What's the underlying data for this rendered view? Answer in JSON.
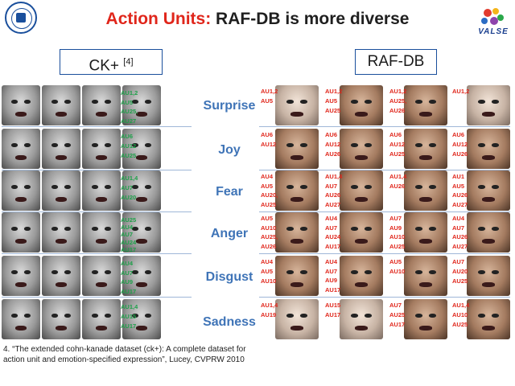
{
  "title": {
    "accent": "Action Units:",
    "rest": " RAF-DB is more diverse"
  },
  "logos": {
    "right_text": "VALSE"
  },
  "datasets": {
    "ck": "CK+",
    "ck_ref": "[4]",
    "raf": "RAF-DB"
  },
  "emotions": [
    "Surprise",
    "Joy",
    "Fear",
    "Anger",
    "Disgust",
    "Sadness"
  ],
  "ck_aus": [
    [
      "AU1,2",
      "AU5",
      "AU25,",
      "AU27"
    ],
    [
      "AU6",
      "AU12",
      "AU25"
    ],
    [
      "AU1,4",
      "AU7",
      "AU20"
    ],
    [
      "AU25",
      "AU4",
      "AU7",
      "AU24",
      "AU17"
    ],
    [
      "AU4",
      "AU7",
      "AU9",
      "AU17"
    ],
    [
      "AU1,4",
      "AU15",
      "AU17"
    ]
  ],
  "raf_aus": [
    [
      [
        "AU1,2",
        "AU5"
      ],
      [
        "AU1,2",
        "AU5",
        "AU25"
      ],
      [
        "AU1,2",
        "AU25,",
        "AU26"
      ],
      [
        "AU1,2"
      ]
    ],
    [
      [
        "AU6",
        "AU12"
      ],
      [
        "AU6",
        "AU12",
        "AU26"
      ],
      [
        "AU6",
        "AU12",
        "AU25"
      ],
      [
        "AU6",
        "AU12",
        "AU26"
      ]
    ],
    [
      [
        "AU4",
        "AU5",
        "AU20,",
        "AU25"
      ],
      [
        "AU1,4",
        "AU7",
        "AU26",
        "AU27"
      ],
      [
        "AU1,4",
        "AU26"
      ],
      [
        "AU1",
        "AU5",
        "AU26",
        "AU27"
      ]
    ],
    [
      [
        "AU5",
        "AU10",
        "AU25,",
        "AU26"
      ],
      [
        "AU4",
        "AU7",
        "AU24",
        "AU17"
      ],
      [
        "AU7",
        "AU9",
        "AU10",
        "AU25"
      ],
      [
        "AU4",
        "AU7",
        "AU26",
        "AU27"
      ]
    ],
    [
      [
        "AU4",
        "AU5",
        "AU10"
      ],
      [
        "AU4",
        "AU7",
        "AU9",
        "AU17"
      ],
      [
        "AU5",
        "AU10"
      ],
      [
        "AU7",
        "AU20",
        "AU25"
      ]
    ],
    [
      [
        "AU1,4",
        "AU19"
      ],
      [
        "AU15",
        "AU17"
      ],
      [
        "AU7",
        "AU25",
        "AU17"
      ],
      [
        "AU1,4",
        "AU10",
        "AU25"
      ]
    ]
  ],
  "footnote": {
    "line1": "4. “The extended cohn-kanade dataset (ck+): A complete dataset for",
    "line2": "action unit and emotion-specified expression”, Lucey, CVPRW 2010"
  },
  "colors": {
    "accent": "#e0261b",
    "emotion": "#3f74b7",
    "ck_label": "#1fa14a",
    "raf_label": "#e0261b"
  }
}
